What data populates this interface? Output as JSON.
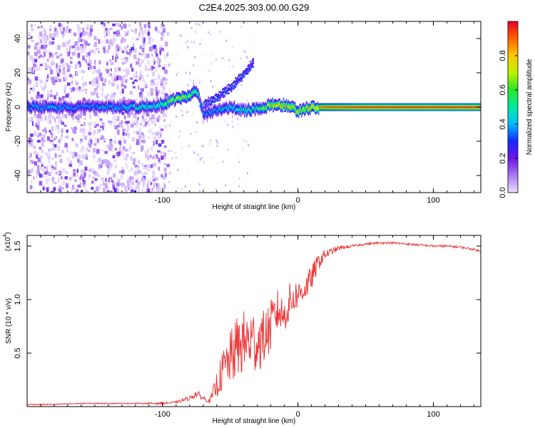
{
  "title": "C2E4.2025.303.00.00.G29",
  "chart_data": [
    {
      "type": "heatmap",
      "name": "spectrogram",
      "xlabel": "Height of straight line (km)",
      "ylabel": "Frequency (Hz)",
      "xlim": [
        -200,
        135
      ],
      "ylim": [
        -50,
        50
      ],
      "xticks": [
        -100,
        0,
        100
      ],
      "yticks": [
        -40,
        -20,
        0,
        20,
        40
      ],
      "colorbar": {
        "label": "Normalized spectral amplitude",
        "range": [
          0.0,
          1.0
        ],
        "ticks": [
          0.0,
          0.2,
          0.4,
          0.6,
          0.8
        ]
      },
      "signal_track": [
        {
          "x": -200,
          "freq": 0,
          "amp": 0.45
        },
        {
          "x": -180,
          "freq": 0,
          "amp": 0.45
        },
        {
          "x": -160,
          "freq": 0,
          "amp": 0.4
        },
        {
          "x": -140,
          "freq": 0,
          "amp": 0.45
        },
        {
          "x": -120,
          "freq": 0,
          "amp": 0.5
        },
        {
          "x": -105,
          "freq": 1,
          "amp": 0.55
        },
        {
          "x": -95,
          "freq": 3,
          "amp": 0.7
        },
        {
          "x": -85,
          "freq": 6,
          "amp": 0.75
        },
        {
          "x": -75,
          "freq": 9,
          "amp": 0.6
        },
        {
          "x": -70,
          "freq": -4,
          "amp": 0.4
        },
        {
          "x": -60,
          "freq": -2,
          "amp": 0.45
        },
        {
          "x": -50,
          "freq": 0,
          "amp": 0.5
        },
        {
          "x": -40,
          "freq": -2,
          "amp": 0.55
        },
        {
          "x": -30,
          "freq": -1,
          "amp": 0.6
        },
        {
          "x": -20,
          "freq": 1,
          "amp": 0.8
        },
        {
          "x": -10,
          "freq": 1,
          "amp": 0.85
        },
        {
          "x": 0,
          "freq": -2,
          "amp": 0.8
        },
        {
          "x": 10,
          "freq": 0,
          "amp": 0.85
        },
        {
          "x": 20,
          "freq": 0,
          "amp": 0.9
        },
        {
          "x": 50,
          "freq": 0,
          "amp": 0.95
        },
        {
          "x": 80,
          "freq": 0,
          "amp": 0.95
        },
        {
          "x": 110,
          "freq": 0,
          "amp": 0.95
        },
        {
          "x": 135,
          "freq": 0,
          "amp": 0.95
        }
      ],
      "upper_branch": [
        {
          "x": -70,
          "freq": 2
        },
        {
          "x": -60,
          "freq": 6
        },
        {
          "x": -50,
          "freq": 12
        },
        {
          "x": -40,
          "freq": 20
        },
        {
          "x": -33,
          "freq": 27
        }
      ]
    },
    {
      "type": "line",
      "name": "snr",
      "xlabel": "Height of straight line (km)",
      "ylabel": "SNR (10 * v/v)",
      "multiplier": "(x10",
      "multiplier_exp": "4",
      "multiplier_close": ")",
      "xlim": [
        -200,
        135
      ],
      "ylim": [
        0,
        1.6
      ],
      "xticks": [
        -100,
        0,
        100
      ],
      "yticks": [
        0.5,
        1.0,
        1.5
      ],
      "series": [
        {
          "name": "SNR",
          "color": "#ee3a3a",
          "x": [
            -200,
            -180,
            -160,
            -140,
            -120,
            -100,
            -90,
            -80,
            -75,
            -70,
            -65,
            -60,
            -55,
            -50,
            -45,
            -40,
            -35,
            -30,
            -25,
            -20,
            -15,
            -10,
            -5,
            0,
            5,
            10,
            15,
            20,
            25,
            30,
            40,
            50,
            60,
            70,
            80,
            90,
            100,
            110,
            120,
            130,
            135
          ],
          "y": [
            0.02,
            0.02,
            0.03,
            0.03,
            0.03,
            0.03,
            0.04,
            0.08,
            0.12,
            0.08,
            0.05,
            0.2,
            0.35,
            0.45,
            0.55,
            0.6,
            0.62,
            0.6,
            0.65,
            0.75,
            0.9,
            0.85,
            1.0,
            1.05,
            1.1,
            1.2,
            1.35,
            1.42,
            1.45,
            1.48,
            1.5,
            1.52,
            1.53,
            1.53,
            1.52,
            1.51,
            1.5,
            1.5,
            1.49,
            1.47,
            1.45
          ],
          "noise_amplitude": [
            0.005,
            0.005,
            0.005,
            0.005,
            0.005,
            0.01,
            0.01,
            0.02,
            0.04,
            0.02,
            0.02,
            0.12,
            0.2,
            0.25,
            0.3,
            0.3,
            0.3,
            0.3,
            0.25,
            0.25,
            0.2,
            0.15,
            0.2,
            0.12,
            0.12,
            0.12,
            0.08,
            0.05,
            0.03,
            0.02,
            0.01,
            0.01,
            0.01,
            0.01,
            0.01,
            0.01,
            0.01,
            0.01,
            0.01,
            0.01,
            0.01
          ]
        }
      ]
    }
  ]
}
